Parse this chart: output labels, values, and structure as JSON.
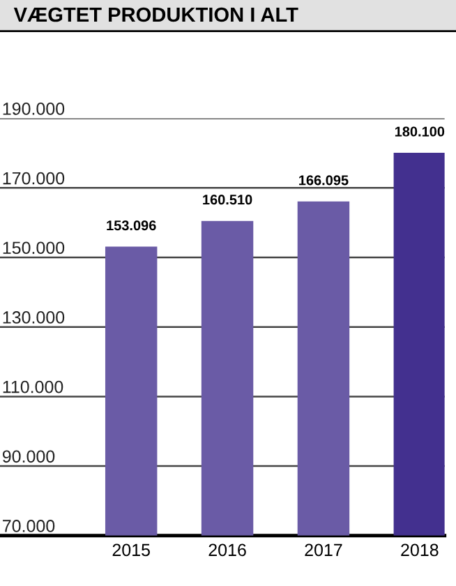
{
  "chart_data": {
    "type": "bar",
    "title": "VÆGTET PRODUKTION I ALT",
    "categories": [
      "2015",
      "2016",
      "2017",
      "2018"
    ],
    "values": [
      153096,
      160510,
      166095,
      180100
    ],
    "colors": [
      "#6a5ba6",
      "#6a5ba6",
      "#6a5ba6",
      "#43308f"
    ],
    "value_labels": [
      "153.096",
      "160.510",
      "166.095",
      "180.100"
    ],
    "ylim": [
      70000,
      190000
    ],
    "yticks": [
      {
        "value": 70000,
        "label": "70.000"
      },
      {
        "value": 90000,
        "label": "90.000"
      },
      {
        "value": 110000,
        "label": "110.000"
      },
      {
        "value": 130000,
        "label": "130.000"
      },
      {
        "value": 150000,
        "label": "150.000"
      },
      {
        "value": 170000,
        "label": "170.000"
      },
      {
        "value": 190000,
        "label": "190.000"
      }
    ],
    "grid": "y",
    "legend": false
  }
}
